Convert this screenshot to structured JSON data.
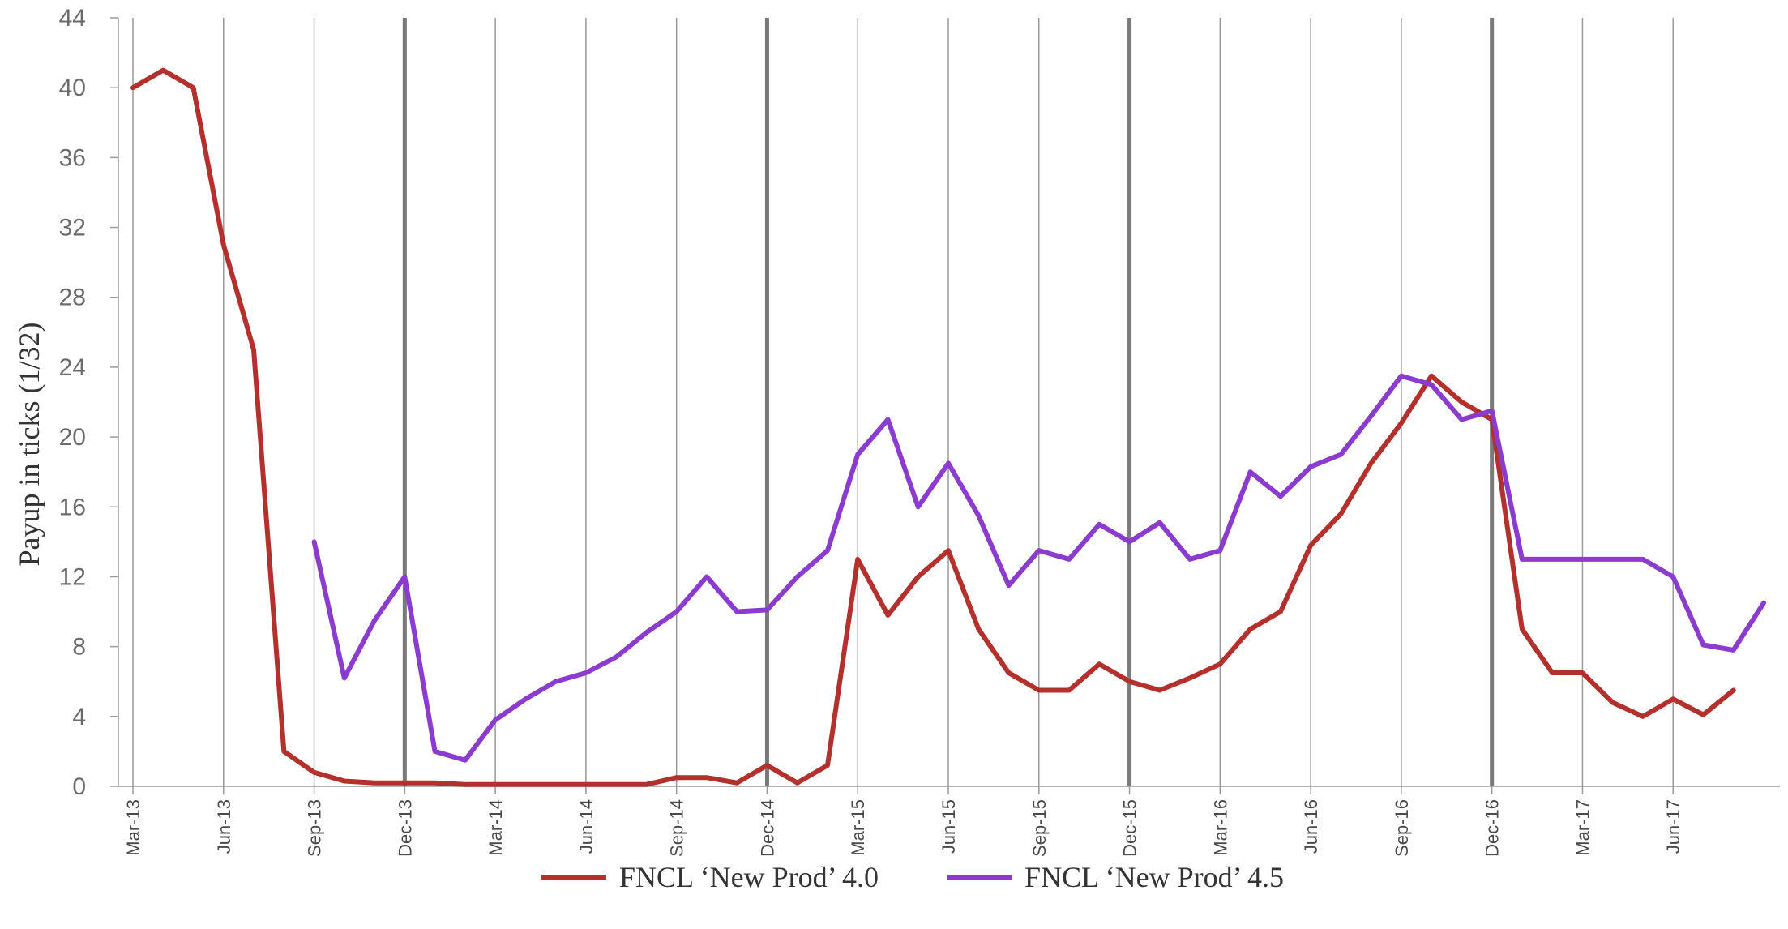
{
  "chart_data": {
    "type": "line",
    "title": "",
    "xlabel": "",
    "ylabel": "Payup in ticks (1/32)",
    "ylim": [
      0,
      44
    ],
    "yticks": [
      0,
      4,
      8,
      12,
      16,
      20,
      24,
      28,
      32,
      36,
      40,
      44
    ],
    "x_start": "Mar-13",
    "x_end": "Sep-17",
    "xtick_labels": [
      "Mar-13",
      "Jun-13",
      "Sep-13",
      "Dec-13",
      "Mar-14",
      "Jun-14",
      "Sep-14",
      "Dec-14",
      "Mar-15",
      "Jun-15",
      "Sep-15",
      "Dec-15",
      "Mar-16",
      "Jun-16",
      "Sep-16",
      "Dec-16",
      "Mar-17",
      "Jun-17"
    ],
    "year_end_markers": [
      "Dec-13",
      "Dec-14",
      "Dec-15",
      "Dec-16"
    ],
    "grid": "vertical",
    "legend_position": "bottom",
    "series": [
      {
        "name": "FNCL ‘New Prod’ 4.0",
        "color": "#b3302c",
        "points": [
          [
            "Mar-13",
            40
          ],
          [
            "Apr-13",
            41
          ],
          [
            "May-13",
            40
          ],
          [
            "Jun-13",
            31
          ],
          [
            "Jul-13",
            25
          ],
          [
            "Aug-13",
            2
          ],
          [
            "Sep-13",
            0.8
          ],
          [
            "Oct-13",
            0.3
          ],
          [
            "Nov-13",
            0.2
          ],
          [
            "Dec-13",
            0.2
          ],
          [
            "Jan-14",
            0.2
          ],
          [
            "Feb-14",
            0.1
          ],
          [
            "Mar-14",
            0.1
          ],
          [
            "Apr-14",
            0.1
          ],
          [
            "May-14",
            0.1
          ],
          [
            "Jun-14",
            0.1
          ],
          [
            "Jul-14",
            0.1
          ],
          [
            "Aug-14",
            0.1
          ],
          [
            "Sep-14",
            0.5
          ],
          [
            "Oct-14",
            0.5
          ],
          [
            "Nov-14",
            0.2
          ],
          [
            "Dec-14",
            1.2
          ],
          [
            "Jan-15",
            0.2
          ],
          [
            "Feb-15",
            1.2
          ],
          [
            "Mar-15",
            13
          ],
          [
            "Apr-15",
            9.8
          ],
          [
            "May-15",
            12
          ],
          [
            "Jun-15",
            13.5
          ],
          [
            "Jul-15",
            9
          ],
          [
            "Aug-15",
            6.5
          ],
          [
            "Sep-15",
            5.5
          ],
          [
            "Oct-15",
            5.5
          ],
          [
            "Nov-15",
            7
          ],
          [
            "Dec-15",
            6
          ],
          [
            "Jan-16",
            5.5
          ],
          [
            "Feb-16",
            6.2
          ],
          [
            "Mar-16",
            7
          ],
          [
            "Apr-16",
            9
          ],
          [
            "May-16",
            10
          ],
          [
            "Jun-16",
            13.8
          ],
          [
            "Jul-16",
            15.6
          ],
          [
            "Aug-16",
            18.5
          ],
          [
            "Sep-16",
            20.8
          ],
          [
            "Oct-16",
            23.5
          ],
          [
            "Nov-16",
            22
          ],
          [
            "Dec-16",
            21
          ],
          [
            "Jan-17",
            9
          ],
          [
            "Feb-17",
            6.5
          ],
          [
            "Mar-17",
            6.5
          ],
          [
            "Apr-17",
            4.8
          ],
          [
            "May-17",
            4
          ],
          [
            "Jun-17",
            5
          ],
          [
            "Jul-17",
            4.1
          ],
          [
            "Aug-17",
            5.5
          ]
        ]
      },
      {
        "name": "FNCL ‘New Prod’ 4.5",
        "color": "#8b3ccf",
        "points": [
          [
            "Sep-13",
            14
          ],
          [
            "Oct-13",
            6.2
          ],
          [
            "Nov-13",
            9.5
          ],
          [
            "Dec-13",
            12
          ],
          [
            "Jan-14",
            2
          ],
          [
            "Feb-14",
            1.5
          ],
          [
            "Mar-14",
            3.8
          ],
          [
            "Apr-14",
            5
          ],
          [
            "May-14",
            6
          ],
          [
            "Jun-14",
            6.5
          ],
          [
            "Jul-14",
            7.4
          ],
          [
            "Aug-14",
            8.8
          ],
          [
            "Sep-14",
            10
          ],
          [
            "Oct-14",
            12
          ],
          [
            "Nov-14",
            10
          ],
          [
            "Dec-14",
            10.1
          ],
          [
            "Jan-15",
            12
          ],
          [
            "Feb-15",
            13.5
          ],
          [
            "Mar-15",
            19
          ],
          [
            "Apr-15",
            21
          ],
          [
            "May-15",
            16
          ],
          [
            "Jun-15",
            18.5
          ],
          [
            "Jul-15",
            15.5
          ],
          [
            "Aug-15",
            11.5
          ],
          [
            "Sep-15",
            13.5
          ],
          [
            "Oct-15",
            13
          ],
          [
            "Nov-15",
            15
          ],
          [
            "Dec-15",
            14
          ],
          [
            "Jan-16",
            15.1
          ],
          [
            "Feb-16",
            13
          ],
          [
            "Mar-16",
            13.5
          ],
          [
            "Apr-16",
            18
          ],
          [
            "May-16",
            16.6
          ],
          [
            "Jun-16",
            18.3
          ],
          [
            "Jul-16",
            19
          ],
          [
            "Aug-16",
            21.2
          ],
          [
            "Sep-16",
            23.5
          ],
          [
            "Oct-16",
            23
          ],
          [
            "Nov-16",
            21
          ],
          [
            "Dec-16",
            21.5
          ],
          [
            "Jan-17",
            13
          ],
          [
            "Feb-17",
            13
          ],
          [
            "Mar-17",
            13
          ],
          [
            "Apr-17",
            13
          ],
          [
            "May-17",
            13
          ],
          [
            "Jun-17",
            12
          ],
          [
            "Jul-17",
            8.1
          ],
          [
            "Aug-17",
            7.8
          ],
          [
            "Sep-17",
            10.5
          ]
        ]
      }
    ]
  }
}
